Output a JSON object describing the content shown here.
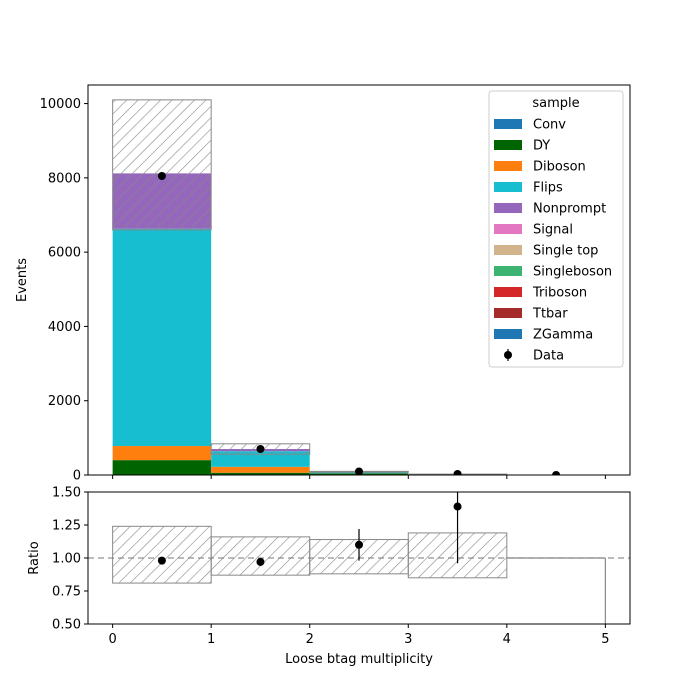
{
  "chart_data": [
    {
      "type": "bar",
      "stacked": true,
      "bin_edges": [
        0,
        1,
        2,
        3,
        4,
        5
      ],
      "xlabel": "",
      "ylabel": "Events",
      "xlim": [
        -0.25,
        5.25
      ],
      "ylim": [
        0,
        10500
      ],
      "yticks": [
        0,
        2000,
        4000,
        6000,
        8000,
        10000
      ],
      "xticks": [
        0,
        1,
        2,
        3,
        4,
        5
      ],
      "legend": {
        "title": "sample",
        "placement": "top-right",
        "entries": [
          "Conv",
          "DY",
          "Diboson",
          "Flips",
          "Nonprompt",
          "Signal",
          "Single top",
          "Singleboson",
          "Triboson",
          "Ttbar",
          "ZGamma",
          "Data"
        ]
      },
      "series": [
        {
          "name": "Conv",
          "color": "#1f77b4",
          "values": [
            0,
            0,
            0,
            0,
            0
          ]
        },
        {
          "name": "DY",
          "color": "#006400",
          "values": [
            400,
            60,
            40,
            10,
            0
          ]
        },
        {
          "name": "Diboson",
          "color": "#ff7f0e",
          "values": [
            380,
            160,
            5,
            2,
            0
          ]
        },
        {
          "name": "Flips",
          "color": "#17becf",
          "values": [
            5850,
            420,
            30,
            5,
            0
          ]
        },
        {
          "name": "Nonprompt",
          "color": "#9467bd",
          "values": [
            1490,
            60,
            10,
            3,
            0
          ]
        },
        {
          "name": "Signal",
          "color": "#e377c2",
          "values": [
            0,
            0,
            0,
            0,
            0
          ]
        },
        {
          "name": "Single top",
          "color": "#d2b48c",
          "values": [
            0,
            0,
            0,
            0,
            0
          ]
        },
        {
          "name": "Singleboson",
          "color": "#3cb371",
          "values": [
            0,
            0,
            0,
            0,
            0
          ]
        },
        {
          "name": "Triboson",
          "color": "#d62728",
          "values": [
            0,
            0,
            0,
            0,
            0
          ]
        },
        {
          "name": "Ttbar",
          "color": "#a52a2a",
          "values": [
            0,
            0,
            0,
            0,
            0
          ]
        },
        {
          "name": "ZGamma",
          "color": "#1f77b4",
          "values": [
            0,
            0,
            0,
            0,
            0
          ]
        }
      ],
      "uncertainty_band": {
        "low": [
          6600,
          560,
          75,
          17,
          0
        ],
        "high": [
          10100,
          840,
          98,
          24,
          0
        ]
      },
      "data": {
        "name": "Data",
        "x": [
          0.5,
          1.5,
          2.5,
          3.5,
          4.5
        ],
        "y": [
          8050,
          700,
          95,
          28,
          0
        ],
        "yerr": [
          90,
          26,
          10,
          5,
          0
        ]
      }
    },
    {
      "type": "scatter",
      "bin_edges": [
        0,
        1,
        2,
        3,
        4,
        5
      ],
      "xlabel": "Loose btag multiplicity",
      "ylabel": "Ratio",
      "xlim": [
        -0.25,
        5.25
      ],
      "ylim": [
        0.5,
        1.5
      ],
      "yticks": [
        "0.50",
        "0.75",
        "1.00",
        "1.25",
        "1.50"
      ],
      "xticks": [
        "0",
        "1",
        "2",
        "3",
        "4",
        "5"
      ],
      "reference_line": 1.0,
      "uncertainty_band": {
        "low": [
          0.81,
          0.87,
          0.88,
          0.85,
          1.0
        ],
        "high": [
          1.24,
          1.16,
          1.14,
          1.19,
          1.0
        ]
      },
      "data": {
        "x": [
          0.5,
          1.5,
          2.5,
          3.5
        ],
        "y": [
          0.98,
          0.97,
          1.1,
          1.39
        ],
        "yerr_low": [
          0.01,
          0.02,
          0.12,
          0.43
        ],
        "yerr_high": [
          0.01,
          0.02,
          0.12,
          0.43
        ]
      }
    }
  ]
}
